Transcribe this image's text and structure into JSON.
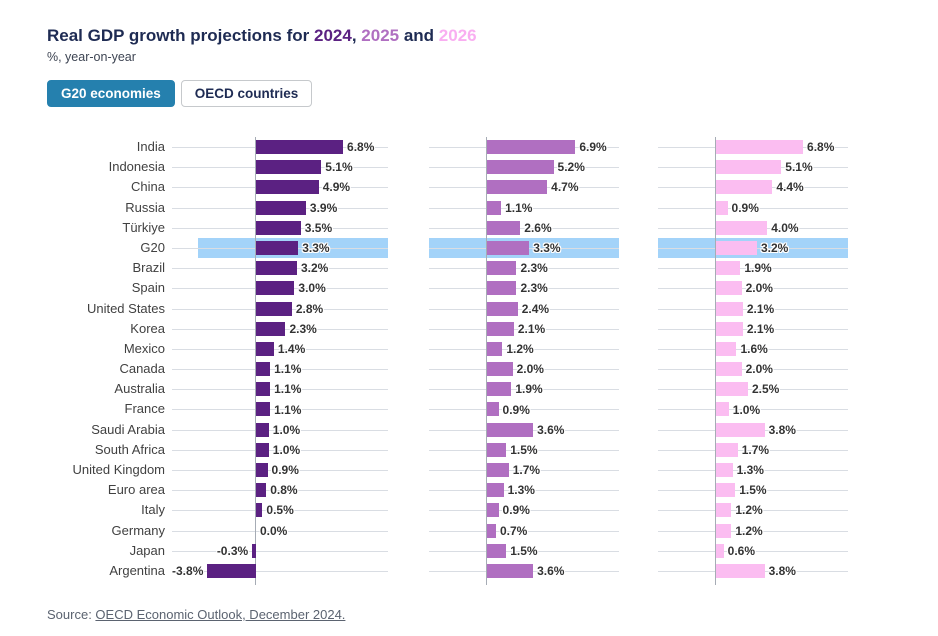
{
  "header": {
    "title_prefix": "Real GDP growth projections for ",
    "separator": ", ",
    "and_word": " and ",
    "years": [
      {
        "label": "2024",
        "color": "#5b2182"
      },
      {
        "label": "2025",
        "color": "#b06fc1"
      },
      {
        "label": "2026",
        "color": "#f9aef1"
      }
    ],
    "title_color": "#1e2b53",
    "subtitle": "%, year-on-year"
  },
  "tabs": [
    {
      "label": "G20 economies",
      "active": true
    },
    {
      "label": "OECD countries",
      "active": false
    }
  ],
  "chart_data": {
    "type": "bar",
    "orientation": "horizontal",
    "unit": "%",
    "value_label_format": "one-decimal-percent",
    "grid": true,
    "highlight_category": "G20",
    "highlight_color": "#a3d3f9",
    "categories": [
      "India",
      "Indonesia",
      "China",
      "Russia",
      "Türkiye",
      "G20",
      "Brazil",
      "Spain",
      "United States",
      "Korea",
      "Mexico",
      "Canada",
      "Australia",
      "France",
      "Saudi Arabia",
      "South Africa",
      "United Kingdom",
      "Euro area",
      "Italy",
      "Germany",
      "Japan",
      "Argentina"
    ],
    "series": [
      {
        "name": "2024",
        "color": "#5b2182",
        "values": [
          6.8,
          5.1,
          4.9,
          3.9,
          3.5,
          3.3,
          3.2,
          3.0,
          2.8,
          2.3,
          1.4,
          1.1,
          1.1,
          1.1,
          1.0,
          1.0,
          0.9,
          0.8,
          0.5,
          0.0,
          -0.3,
          -3.8
        ]
      },
      {
        "name": "2025",
        "color": "#b06fc1",
        "values": [
          6.9,
          5.2,
          4.7,
          1.1,
          2.6,
          3.3,
          2.3,
          2.3,
          2.4,
          2.1,
          1.2,
          2.0,
          1.9,
          0.9,
          3.6,
          1.5,
          1.7,
          1.3,
          0.9,
          0.7,
          1.5,
          3.6
        ]
      },
      {
        "name": "2026",
        "color": "#fbbdf1",
        "values": [
          6.8,
          5.1,
          4.4,
          0.9,
          4.0,
          3.2,
          1.9,
          2.0,
          2.1,
          2.1,
          1.6,
          2.0,
          2.5,
          1.0,
          3.8,
          1.7,
          1.3,
          1.5,
          1.2,
          1.2,
          0.6,
          3.8
        ]
      }
    ],
    "xlim": [
      -4.5,
      10.3
    ]
  },
  "source": {
    "prefix": "Source: ",
    "link_text": "OECD Economic Outlook, December 2024."
  }
}
